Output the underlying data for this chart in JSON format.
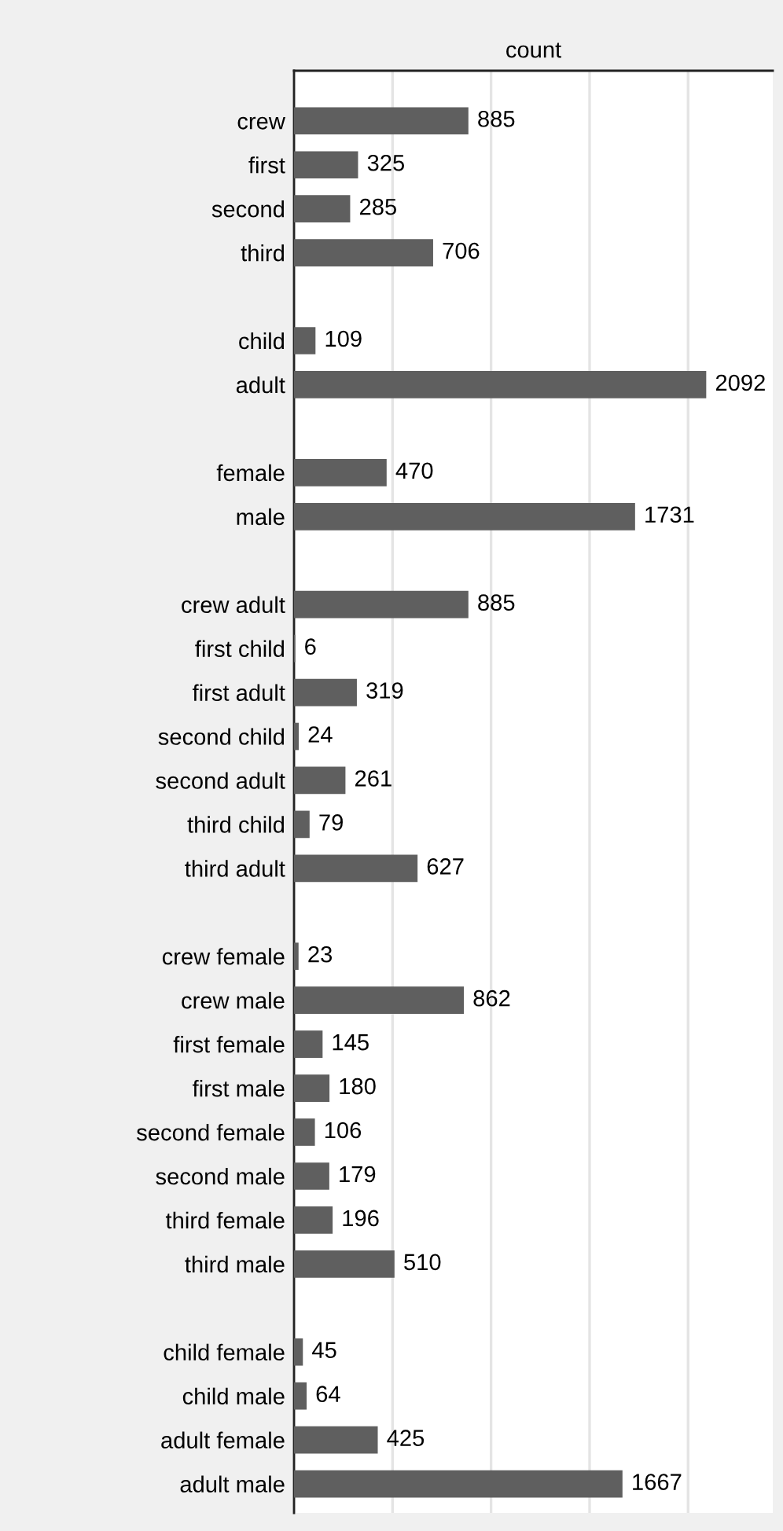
{
  "chart_data": {
    "type": "bar",
    "orientation": "horizontal",
    "title": "count",
    "categories": [
      "crew",
      "first",
      "second",
      "third",
      null,
      "child",
      "adult",
      null,
      "female",
      "male",
      null,
      "crew adult",
      "first child",
      "first adult",
      "second child",
      "second adult",
      "third child",
      "third adult",
      null,
      "crew female",
      "crew male",
      "first female",
      "first male",
      "second female",
      "second male",
      "third female",
      "third male",
      null,
      "child female",
      "child male",
      "adult female",
      "adult male"
    ],
    "values": [
      885,
      325,
      285,
      706,
      null,
      109,
      2092,
      null,
      470,
      1731,
      null,
      885,
      6,
      319,
      24,
      261,
      79,
      627,
      null,
      23,
      862,
      145,
      180,
      106,
      179,
      196,
      510,
      null,
      45,
      64,
      425,
      1667
    ],
    "color": "#5f5f5f",
    "data_labels": true,
    "grid": "x",
    "tick_labels": "y",
    "xlim": [
      0,
      2430
    ],
    "xticks": [
      {
        "value": 0,
        "label": null
      },
      {
        "value": 500,
        "label": null
      },
      {
        "value": 1000,
        "label": null
      },
      {
        "value": 1500,
        "label": null
      },
      {
        "value": 2000,
        "label": null
      }
    ]
  }
}
